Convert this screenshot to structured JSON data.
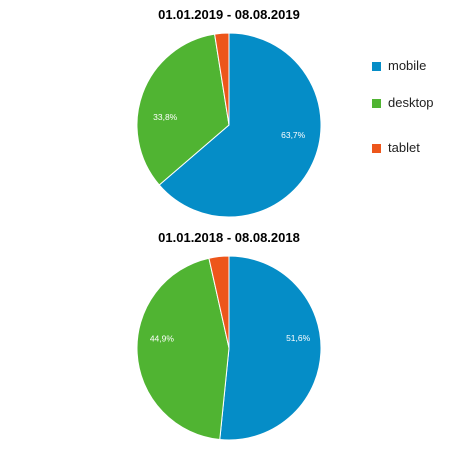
{
  "chart_data": [
    {
      "type": "pie",
      "title": "01.01.2019 - 08.08.2019",
      "slices": [
        {
          "name": "mobile",
          "value": 63.7,
          "label": "63,7%"
        },
        {
          "name": "desktop",
          "value": 33.8,
          "label": "33,8%"
        },
        {
          "name": "tablet",
          "value": 2.5,
          "label": ""
        }
      ]
    },
    {
      "type": "pie",
      "title": "01.01.2018 - 08.08.2018",
      "slices": [
        {
          "name": "mobile",
          "value": 51.6,
          "label": "51,6%"
        },
        {
          "name": "desktop",
          "value": 44.9,
          "label": "44,9%"
        },
        {
          "name": "tablet",
          "value": 3.5,
          "label": ""
        }
      ]
    }
  ],
  "legend": {
    "placement": "right",
    "items": [
      {
        "label": "mobile",
        "color": "#058dc7"
      },
      {
        "label": "desktop",
        "color": "#50b432"
      },
      {
        "label": "tablet",
        "color": "#ed561b"
      }
    ]
  },
  "colors": {
    "mobile": "#058dc7",
    "desktop": "#50b432",
    "tablet": "#ed561b"
  }
}
